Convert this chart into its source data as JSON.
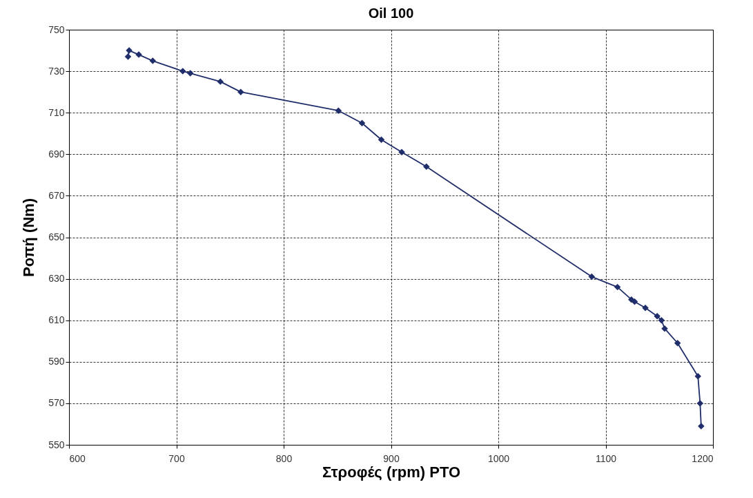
{
  "chart_data": {
    "type": "line",
    "title": "Oil 100",
    "xlabel": "Στροφές (rpm) PTO",
    "ylabel": "Ροπή (Nm)",
    "x": [
      655,
      656,
      665,
      678,
      706,
      713,
      741,
      760,
      851,
      873,
      891,
      910,
      933,
      1087,
      1111,
      1124,
      1127,
      1137,
      1148,
      1152,
      1155,
      1167,
      1186,
      1188,
      1189
    ],
    "series": [
      {
        "color": "#1f2d6b",
        "values": [
          737,
          740,
          738,
          735,
          730,
          729,
          725,
          720,
          711,
          705,
          697,
          691,
          684,
          631,
          626,
          620,
          619,
          616,
          612,
          610,
          606,
          599,
          583,
          570,
          559
        ]
      }
    ],
    "xlim": [
      600,
      1200
    ],
    "xticks": [
      600,
      700,
      800,
      900,
      1000,
      1100,
      1200
    ],
    "ylim": [
      550,
      750
    ],
    "yticks": [
      550,
      570,
      590,
      610,
      630,
      650,
      670,
      690,
      710,
      730,
      750
    ],
    "grid": true,
    "marker": "diamond",
    "line_style": "solid",
    "legend": false
  }
}
